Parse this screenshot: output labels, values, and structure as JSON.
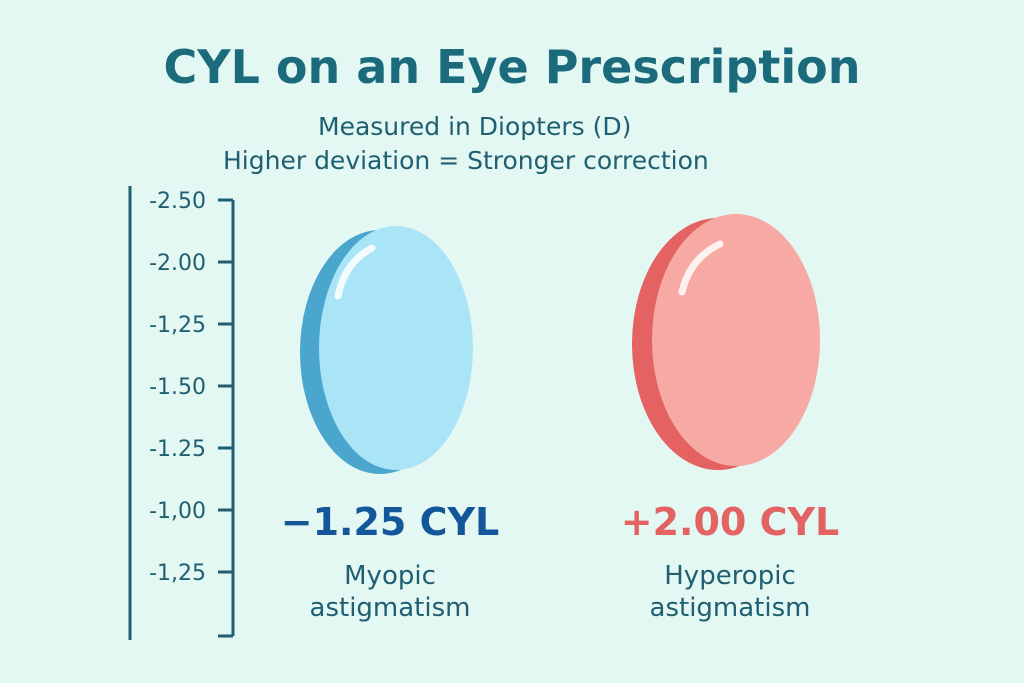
{
  "title": "CYL on an Eye Prescription",
  "subtitle_1": "Measured in Diopters (D)",
  "subtitle_2": "Higher deviation = Stronger correction",
  "scale_ticks": [
    "-2.50",
    "-2.00",
    "-1,25",
    "-1.50",
    "-1.25",
    "-1,00",
    "-1,25"
  ],
  "lenses": [
    {
      "value": "−1.25 CYL",
      "label_line1": "Myopic",
      "label_line2": "astigmatism",
      "color": "#a9e4f7",
      "edge_color": "#4aa6cc",
      "value_color": "#14569a"
    },
    {
      "value": "+2.00 CYL",
      "label_line1": "Hyperopic",
      "label_line2": "astigmatism",
      "color": "#f7aaa3",
      "edge_color": "#e46262",
      "value_color": "#e46262"
    }
  ]
}
